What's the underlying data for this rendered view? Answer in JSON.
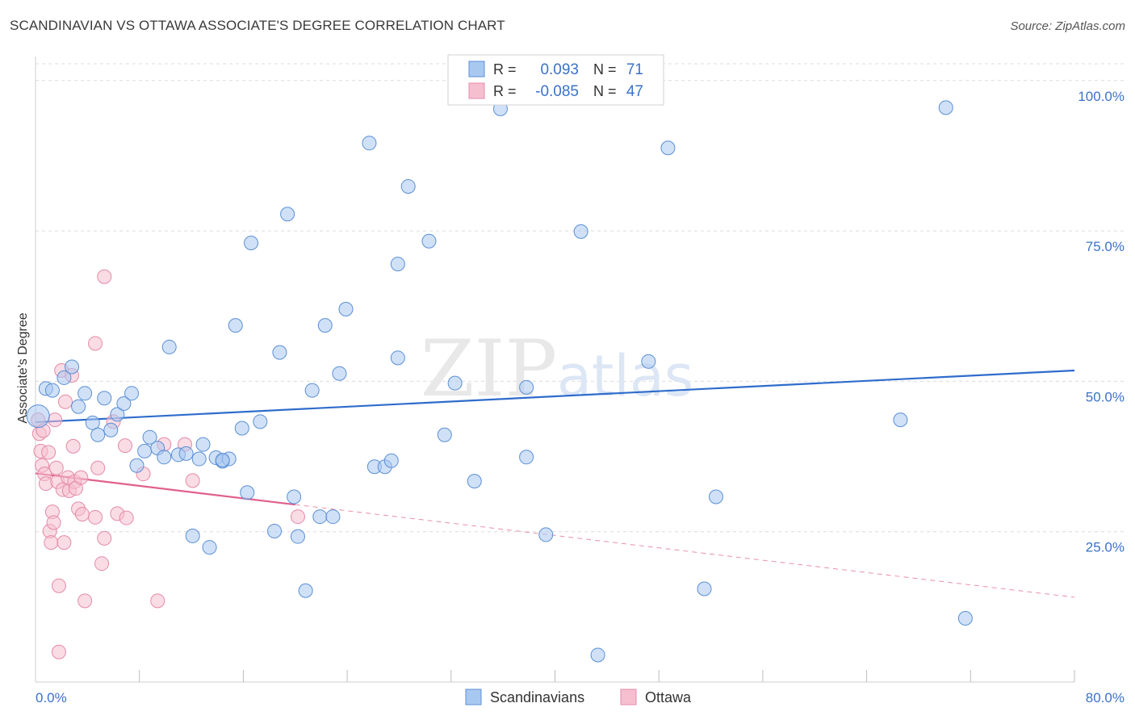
{
  "chart_data": {
    "type": "scatter",
    "title": "SCANDINAVIAN VS OTTAWA ASSOCIATE'S DEGREE CORRELATION CHART",
    "source": "Source: ZipAtlas.com",
    "xlabel": "",
    "ylabel": "Associate's Degree",
    "xlim": [
      0,
      80
    ],
    "ylim": [
      0,
      104
    ],
    "x_tick_labels": [
      "0.0%",
      "80.0%"
    ],
    "y_ticks": [
      25,
      50,
      75,
      100
    ],
    "y_tick_labels": [
      "25.0%",
      "50.0%",
      "75.0%",
      "100.0%"
    ],
    "grid": true,
    "watermark": "ZIPatlas",
    "legend": {
      "position": "top-center",
      "r_label": "R =",
      "n_label": "N =",
      "entries": [
        {
          "name": "Scandinavians",
          "r": "0.093",
          "n": "71"
        },
        {
          "name": "Ottawa",
          "r": "-0.085",
          "n": "47"
        }
      ]
    },
    "colors": {
      "scandinavians_fill": "#a9c8f0",
      "scandinavians_stroke": "#5b8fd6",
      "scandinavians_line": "#2e6ccc",
      "ottawa_fill": "#f6bfd0",
      "ottawa_stroke": "#e58aa8",
      "ottawa_line": "#e0608c",
      "value_text": "#3b72c9",
      "grid": "#dcdcdc"
    },
    "series": [
      {
        "name": "Scandinavians",
        "trend": {
          "x": [
            0,
            80
          ],
          "y": [
            43.2,
            51.8
          ]
        },
        "points": [
          [
            0.2,
            44.2
          ],
          [
            0.8,
            48.8
          ],
          [
            1.3,
            48.5
          ],
          [
            2.2,
            50.6
          ],
          [
            2.8,
            52.4
          ],
          [
            3.3,
            45.8
          ],
          [
            3.8,
            48.0
          ],
          [
            4.4,
            43.1
          ],
          [
            4.8,
            41.1
          ],
          [
            5.3,
            47.2
          ],
          [
            5.8,
            41.9
          ],
          [
            6.3,
            44.5
          ],
          [
            6.8,
            46.3
          ],
          [
            7.4,
            48.0
          ],
          [
            7.8,
            36.0
          ],
          [
            8.4,
            38.4
          ],
          [
            8.8,
            40.7
          ],
          [
            9.4,
            38.9
          ],
          [
            9.9,
            37.4
          ],
          [
            10.3,
            55.7
          ],
          [
            11.0,
            37.8
          ],
          [
            11.6,
            38.0
          ],
          [
            12.1,
            24.3
          ],
          [
            12.6,
            37.1
          ],
          [
            12.9,
            39.5
          ],
          [
            13.4,
            22.4
          ],
          [
            13.9,
            37.3
          ],
          [
            14.4,
            36.7
          ],
          [
            14.9,
            37.1
          ],
          [
            15.4,
            59.3
          ],
          [
            15.9,
            42.2
          ],
          [
            16.3,
            31.5
          ],
          [
            16.6,
            73.0
          ],
          [
            17.3,
            43.3
          ],
          [
            18.4,
            25.1
          ],
          [
            18.8,
            54.8
          ],
          [
            19.4,
            77.8
          ],
          [
            19.9,
            30.8
          ],
          [
            20.2,
            24.2
          ],
          [
            20.8,
            15.2
          ],
          [
            21.3,
            48.5
          ],
          [
            21.9,
            27.5
          ],
          [
            22.3,
            59.3
          ],
          [
            22.9,
            27.5
          ],
          [
            23.4,
            51.3
          ],
          [
            23.9,
            62.0
          ],
          [
            25.7,
            89.6
          ],
          [
            26.1,
            35.8
          ],
          [
            26.9,
            35.8
          ],
          [
            27.4,
            36.8
          ],
          [
            27.9,
            53.9
          ],
          [
            27.9,
            69.5
          ],
          [
            28.7,
            82.4
          ],
          [
            30.3,
            73.3
          ],
          [
            31.5,
            41.1
          ],
          [
            32.3,
            49.7
          ],
          [
            33.8,
            33.4
          ],
          [
            35.8,
            95.3
          ],
          [
            37.8,
            37.4
          ],
          [
            37.8,
            49.0
          ],
          [
            39.3,
            24.5
          ],
          [
            42.0,
            74.9
          ],
          [
            47.2,
            53.3
          ],
          [
            48.7,
            88.8
          ],
          [
            51.5,
            15.5
          ],
          [
            52.4,
            30.8
          ],
          [
            66.6,
            43.6
          ],
          [
            70.1,
            95.5
          ],
          [
            71.6,
            10.6
          ],
          [
            43.3,
            4.5
          ],
          [
            14.4,
            36.9
          ]
        ]
      },
      {
        "name": "Ottawa",
        "trend": {
          "x": [
            0,
            20
          ],
          "y": [
            34.7,
            29.5
          ]
        },
        "trend_extension": {
          "x": [
            20,
            80
          ],
          "y": [
            29.5,
            14.1
          ]
        },
        "points": [
          [
            0.2,
            43.6
          ],
          [
            0.3,
            41.3
          ],
          [
            0.4,
            38.4
          ],
          [
            0.5,
            36.0
          ],
          [
            0.6,
            41.8
          ],
          [
            0.7,
            34.6
          ],
          [
            0.8,
            33.0
          ],
          [
            1.0,
            38.2
          ],
          [
            1.1,
            25.1
          ],
          [
            1.2,
            23.2
          ],
          [
            1.3,
            28.3
          ],
          [
            1.4,
            26.5
          ],
          [
            1.5,
            43.6
          ],
          [
            1.6,
            35.6
          ],
          [
            1.7,
            33.3
          ],
          [
            1.8,
            16.0
          ],
          [
            1.8,
            5.0
          ],
          [
            2.0,
            51.8
          ],
          [
            2.1,
            32.0
          ],
          [
            2.2,
            23.2
          ],
          [
            2.3,
            46.6
          ],
          [
            2.5,
            34.0
          ],
          [
            2.6,
            31.8
          ],
          [
            2.8,
            51.0
          ],
          [
            2.9,
            39.2
          ],
          [
            3.0,
            33.3
          ],
          [
            3.1,
            32.2
          ],
          [
            3.3,
            28.8
          ],
          [
            3.5,
            34.0
          ],
          [
            3.6,
            27.9
          ],
          [
            3.8,
            13.5
          ],
          [
            4.6,
            27.4
          ],
          [
            4.6,
            56.3
          ],
          [
            4.8,
            35.6
          ],
          [
            5.1,
            19.7
          ],
          [
            5.3,
            23.9
          ],
          [
            5.3,
            67.4
          ],
          [
            6.0,
            43.3
          ],
          [
            6.3,
            28.0
          ],
          [
            7.0,
            27.3
          ],
          [
            6.9,
            39.3
          ],
          [
            8.3,
            34.6
          ],
          [
            9.4,
            13.5
          ],
          [
            9.9,
            39.5
          ],
          [
            11.5,
            39.5
          ],
          [
            12.1,
            33.5
          ],
          [
            20.2,
            27.5
          ]
        ]
      }
    ]
  }
}
